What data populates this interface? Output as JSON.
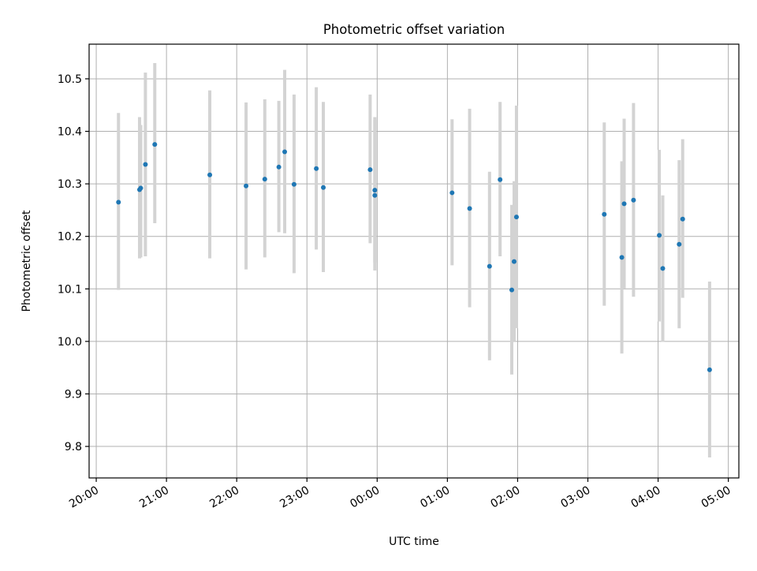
{
  "chart_data": {
    "type": "scatter",
    "title": "Photometric offset variation",
    "xlabel": "UTC time",
    "ylabel": "Photometric offset",
    "x_axis_type": "time",
    "x_date_start": "day 1",
    "x_ticks": [
      "20:00",
      "21:00",
      "22:00",
      "23:00",
      "00:00",
      "01:00",
      "02:00",
      "03:00",
      "04:00",
      "05:00"
    ],
    "x_tick_minutes": [
      1200,
      1260,
      1320,
      1380,
      1440,
      1500,
      1560,
      1620,
      1680,
      1740
    ],
    "xlim_minutes": [
      1193.9,
      1749.0
    ],
    "y_ticks": [
      "9.8",
      "9.9",
      "10.0",
      "10.1",
      "10.2",
      "10.3",
      "10.4",
      "10.5"
    ],
    "y_tick_values": [
      9.8,
      9.9,
      10.0,
      10.1,
      10.2,
      10.3,
      10.4,
      10.5
    ],
    "ylim": [
      9.74,
      10.566
    ],
    "grid": true,
    "marker_color": "#1f77b4",
    "errorbar_color": "#d3d3d3",
    "series": [
      {
        "points": [
          {
            "t": "20:19",
            "y": 10.265,
            "lo": 10.098,
            "hi": 10.435
          },
          {
            "t": "20:37",
            "y": 10.289,
            "lo": 10.158,
            "hi": 10.427
          },
          {
            "t": "20:38",
            "y": 10.292,
            "lo": 10.16,
            "hi": 10.412
          },
          {
            "t": "20:42",
            "y": 10.337,
            "lo": 10.162,
            "hi": 10.512
          },
          {
            "t": "20:50",
            "y": 10.375,
            "lo": 10.225,
            "hi": 10.53
          },
          {
            "t": "21:37",
            "y": 10.317,
            "lo": 10.158,
            "hi": 10.478
          },
          {
            "t": "22:08",
            "y": 10.296,
            "lo": 10.137,
            "hi": 10.455
          },
          {
            "t": "22:24",
            "y": 10.309,
            "lo": 10.16,
            "hi": 10.461
          },
          {
            "t": "22:36",
            "y": 10.332,
            "lo": 10.208,
            "hi": 10.458
          },
          {
            "t": "22:41",
            "y": 10.361,
            "lo": 10.206,
            "hi": 10.517
          },
          {
            "t": "22:49",
            "y": 10.299,
            "lo": 10.13,
            "hi": 10.47
          },
          {
            "t": "23:08",
            "y": 10.329,
            "lo": 10.175,
            "hi": 10.484
          },
          {
            "t": "23:14",
            "y": 10.293,
            "lo": 10.132,
            "hi": 10.456
          },
          {
            "t": "23:54",
            "y": 10.327,
            "lo": 10.187,
            "hi": 10.47
          },
          {
            "t": "23:58",
            "y": 10.288,
            "lo": 10.15,
            "hi": 10.427
          },
          {
            "t": "23:58",
            "y": 10.278,
            "lo": 10.135,
            "hi": 10.422
          },
          {
            "t": "01:04",
            "y": 10.283,
            "lo": 10.145,
            "hi": 10.423
          },
          {
            "t": "01:19",
            "y": 10.253,
            "lo": 10.065,
            "hi": 10.443
          },
          {
            "t": "01:36",
            "y": 10.143,
            "lo": 9.964,
            "hi": 10.323
          },
          {
            "t": "01:45",
            "y": 10.308,
            "lo": 10.162,
            "hi": 10.456
          },
          {
            "t": "01:55",
            "y": 10.098,
            "lo": 9.937,
            "hi": 10.26
          },
          {
            "t": "01:57",
            "y": 10.152,
            "lo": 10.0,
            "hi": 10.305
          },
          {
            "t": "01:59",
            "y": 10.237,
            "lo": 10.025,
            "hi": 10.449
          },
          {
            "t": "03:14",
            "y": 10.242,
            "lo": 10.068,
            "hi": 10.417
          },
          {
            "t": "03:29",
            "y": 10.16,
            "lo": 9.977,
            "hi": 10.343
          },
          {
            "t": "03:31",
            "y": 10.262,
            "lo": 10.101,
            "hi": 10.424
          },
          {
            "t": "03:39",
            "y": 10.269,
            "lo": 10.085,
            "hi": 10.454
          },
          {
            "t": "04:01",
            "y": 10.202,
            "lo": 10.038,
            "hi": 10.365
          },
          {
            "t": "04:04",
            "y": 10.139,
            "lo": 9.999,
            "hi": 10.278
          },
          {
            "t": "04:18",
            "y": 10.185,
            "lo": 10.025,
            "hi": 10.345
          },
          {
            "t": "04:21",
            "y": 10.233,
            "lo": 10.083,
            "hi": 10.385
          },
          {
            "t": "04:44",
            "y": 9.946,
            "lo": 9.779,
            "hi": 10.114
          }
        ]
      }
    ]
  }
}
